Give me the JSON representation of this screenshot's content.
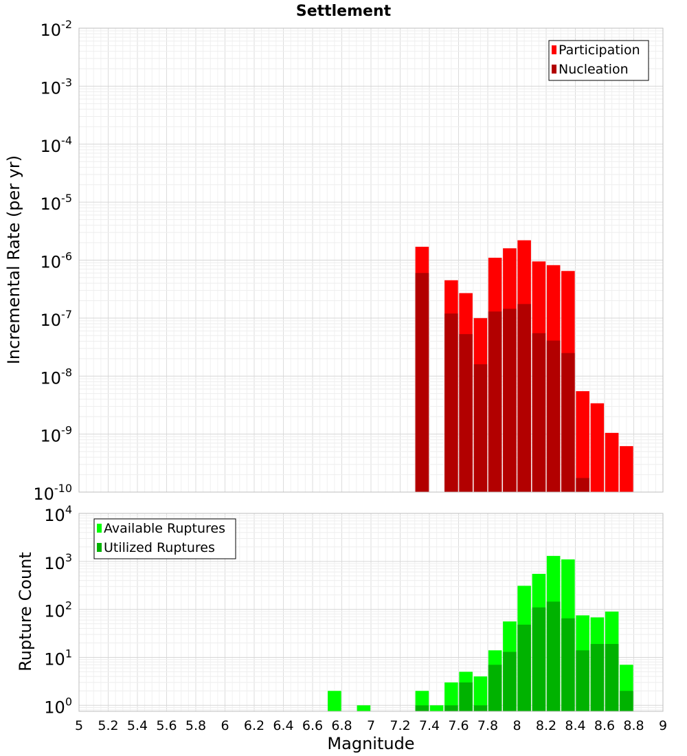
{
  "chart_data": [
    {
      "type": "bar",
      "title": "Settlement",
      "ylabel": "Incremental Rate (per yr)",
      "xlabel": "",
      "y_scale": "log",
      "ylim": [
        1e-10,
        0.01
      ],
      "xlim": [
        5,
        9
      ],
      "grid": true,
      "legend_position": "top-right",
      "y_tick_labels": [
        {
          "base": "10",
          "exp": "-10",
          "value": 1e-10
        },
        {
          "base": "10",
          "exp": "-9",
          "value": 1e-09
        },
        {
          "base": "10",
          "exp": "-8",
          "value": 1e-08
        },
        {
          "base": "10",
          "exp": "-7",
          "value": 1e-07
        },
        {
          "base": "10",
          "exp": "-6",
          "value": 1e-06
        },
        {
          "base": "10",
          "exp": "-5",
          "value": 1e-05
        },
        {
          "base": "10",
          "exp": "-4",
          "value": 0.0001
        },
        {
          "base": "10",
          "exp": "-3",
          "value": 0.001
        },
        {
          "base": "10",
          "exp": "-2",
          "value": 0.01
        }
      ],
      "series": [
        {
          "name": "Participation",
          "color": "#ff0000",
          "points": [
            {
              "x": 7.35,
              "y": 1.7e-06
            },
            {
              "x": 7.55,
              "y": 4.5e-07
            },
            {
              "x": 7.65,
              "y": 2.7e-07
            },
            {
              "x": 7.75,
              "y": 1e-07
            },
            {
              "x": 7.85,
              "y": 1.1e-06
            },
            {
              "x": 7.95,
              "y": 1.6e-06
            },
            {
              "x": 8.05,
              "y": 2.2e-06
            },
            {
              "x": 8.15,
              "y": 9.5e-07
            },
            {
              "x": 8.25,
              "y": 8.2e-07
            },
            {
              "x": 8.35,
              "y": 6.5e-07
            },
            {
              "x": 8.45,
              "y": 5.5e-09
            },
            {
              "x": 8.55,
              "y": 3.4e-09
            },
            {
              "x": 8.65,
              "y": 1.05e-09
            },
            {
              "x": 8.75,
              "y": 6.2e-10
            }
          ]
        },
        {
          "name": "Nucleation",
          "color": "#b20000",
          "points": [
            {
              "x": 7.35,
              "y": 6e-07
            },
            {
              "x": 7.55,
              "y": 1.2e-07
            },
            {
              "x": 7.65,
              "y": 5.3e-08
            },
            {
              "x": 7.75,
              "y": 1.6e-08
            },
            {
              "x": 7.85,
              "y": 1.3e-07
            },
            {
              "x": 7.95,
              "y": 1.45e-07
            },
            {
              "x": 8.05,
              "y": 1.75e-07
            },
            {
              "x": 8.15,
              "y": 5.5e-08
            },
            {
              "x": 8.25,
              "y": 4.1e-08
            },
            {
              "x": 8.35,
              "y": 2.5e-08
            },
            {
              "x": 8.45,
              "y": 1.75e-10
            }
          ]
        }
      ]
    },
    {
      "type": "bar",
      "title": "",
      "ylabel": "Rupture Count",
      "xlabel": "Magnitude",
      "y_scale": "log",
      "ylim": [
        0.75,
        10000
      ],
      "xlim": [
        5,
        9
      ],
      "grid": true,
      "legend_position": "top-left",
      "x_tick_labels": [
        "5",
        "5.2",
        "5.4",
        "5.6",
        "5.8",
        "6",
        "6.2",
        "6.4",
        "6.6",
        "6.8",
        "7",
        "7.2",
        "7.4",
        "7.6",
        "7.8",
        "8",
        "8.2",
        "8.4",
        "8.6",
        "8.8",
        "9"
      ],
      "y_tick_labels": [
        {
          "base": "10",
          "exp": "0",
          "value": 1
        },
        {
          "base": "10",
          "exp": "1",
          "value": 10
        },
        {
          "base": "10",
          "exp": "2",
          "value": 100
        },
        {
          "base": "10",
          "exp": "3",
          "value": 1000
        },
        {
          "base": "10",
          "exp": "4",
          "value": 10000
        }
      ],
      "series": [
        {
          "name": "Available Ruptures",
          "color": "#00ff00",
          "points": [
            {
              "x": 6.75,
              "y": 2
            },
            {
              "x": 6.95,
              "y": 1
            },
            {
              "x": 7.35,
              "y": 2
            },
            {
              "x": 7.45,
              "y": 1
            },
            {
              "x": 7.55,
              "y": 3
            },
            {
              "x": 7.65,
              "y": 5
            },
            {
              "x": 7.75,
              "y": 4
            },
            {
              "x": 7.85,
              "y": 14
            },
            {
              "x": 7.95,
              "y": 56
            },
            {
              "x": 8.05,
              "y": 310
            },
            {
              "x": 8.15,
              "y": 550
            },
            {
              "x": 8.25,
              "y": 1300
            },
            {
              "x": 8.35,
              "y": 1100
            },
            {
              "x": 8.45,
              "y": 75
            },
            {
              "x": 8.55,
              "y": 68
            },
            {
              "x": 8.65,
              "y": 90
            },
            {
              "x": 8.75,
              "y": 7
            }
          ]
        },
        {
          "name": "Utilized Ruptures",
          "color": "#00b200",
          "points": [
            {
              "x": 7.35,
              "y": 1
            },
            {
              "x": 7.55,
              "y": 1
            },
            {
              "x": 7.65,
              "y": 3
            },
            {
              "x": 7.75,
              "y": 1
            },
            {
              "x": 7.85,
              "y": 7
            },
            {
              "x": 7.95,
              "y": 13
            },
            {
              "x": 8.05,
              "y": 48
            },
            {
              "x": 8.15,
              "y": 110
            },
            {
              "x": 8.25,
              "y": 145
            },
            {
              "x": 8.35,
              "y": 65
            },
            {
              "x": 8.45,
              "y": 14
            },
            {
              "x": 8.55,
              "y": 19
            },
            {
              "x": 8.65,
              "y": 19
            },
            {
              "x": 8.75,
              "y": 2
            }
          ]
        }
      ]
    }
  ]
}
